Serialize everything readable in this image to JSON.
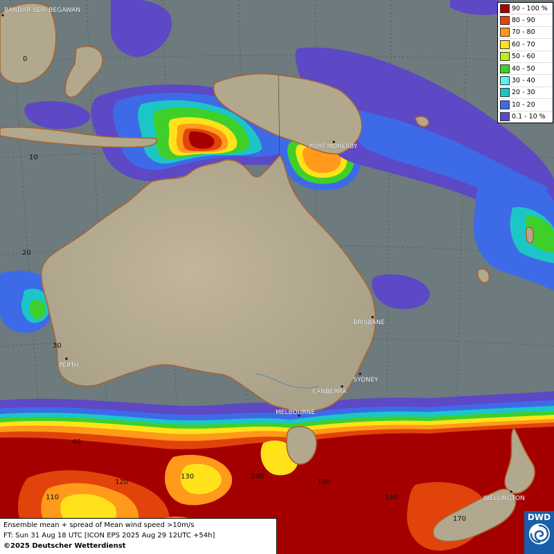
{
  "legend": [
    {
      "label": "90 - 100 %",
      "color": "#a50000"
    },
    {
      "label": "80 - 90",
      "color": "#e2430a"
    },
    {
      "label": "70 - 80",
      "color": "#ff9a1a"
    },
    {
      "label": "60 - 70",
      "color": "#ffe21a"
    },
    {
      "label": "50 - 60",
      "color": "#b8ef1c"
    },
    {
      "label": "40 - 50",
      "color": "#3fcf2b"
    },
    {
      "label": "30 - 40",
      "color": "#5cf0f0"
    },
    {
      "label": "20 - 30",
      "color": "#1cc6c6"
    },
    {
      "label": "10 - 20",
      "color": "#3d6be8"
    },
    {
      "label": "0.1 - 10 %",
      "color": "#5d48c6"
    }
  ],
  "cities": {
    "bandar": "BANDAR SERI BEGAWAN",
    "port_moresby": "PORT MORESBY",
    "brisbane": "BRISBANE",
    "sydney": "SYDNEY",
    "canberra": "CANBERRA",
    "melbourne": "MELBOURNE",
    "perth": "PERTH",
    "wellington": "WELLINGTON"
  },
  "grid_labels": {
    "lat_0": "0",
    "lat_10": "10",
    "lat_20": "20",
    "lat_30": "30",
    "lat_40": "40",
    "lon_110": "110",
    "lon_120": "120",
    "lon_130": "130",
    "lon_140": "140",
    "lon_150": "150",
    "lon_160": "160",
    "lon_170": "170"
  },
  "info": {
    "line1": "Ensemble mean + spread of Mean wind speed >10m/s",
    "line2": "FT: Sun 31 Aug 18 UTC [ICON EPS 2025 Aug 29 12UTC +54h]",
    "line3": "©2025 Deutscher Wetterdienst"
  },
  "logo": {
    "text": "DWD",
    "color": "#1a5ea9"
  },
  "colors": {
    "ocean": "#6d7a7e",
    "land": "#b7ad92",
    "coast": "#a86430"
  }
}
